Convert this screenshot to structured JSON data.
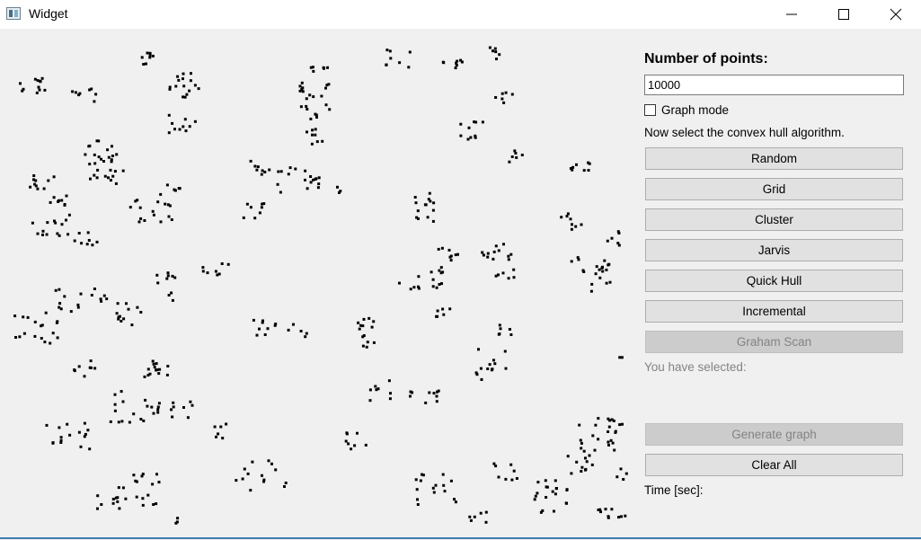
{
  "window": {
    "title": "Widget",
    "controls": [
      "minimize-icon",
      "maximize-icon",
      "close-icon"
    ]
  },
  "panel": {
    "points_label": "Number of points:",
    "points_value": "10000",
    "graph_mode_label": "Graph mode",
    "graph_mode_checked": false,
    "instruction": "Now select the convex hull algorithm.",
    "buttons": [
      {
        "label": "Random",
        "enabled": true
      },
      {
        "label": "Grid",
        "enabled": true
      },
      {
        "label": "Cluster",
        "enabled": true
      },
      {
        "label": "Jarvis",
        "enabled": true
      },
      {
        "label": "Quick Hull",
        "enabled": true
      },
      {
        "label": "Incremental",
        "enabled": true
      },
      {
        "label": "Graham Scan",
        "enabled": false
      }
    ],
    "selected_label": "You have selected:",
    "generate_graph_label": "Generate graph",
    "generate_graph_enabled": false,
    "clear_all_label": "Clear All",
    "time_label": "Time [sec]:"
  },
  "colors": {
    "point": "#000000",
    "button_bg": "#e1e1e1",
    "disabled_button_bg": "#cccccc",
    "disabled_text": "#838383"
  }
}
